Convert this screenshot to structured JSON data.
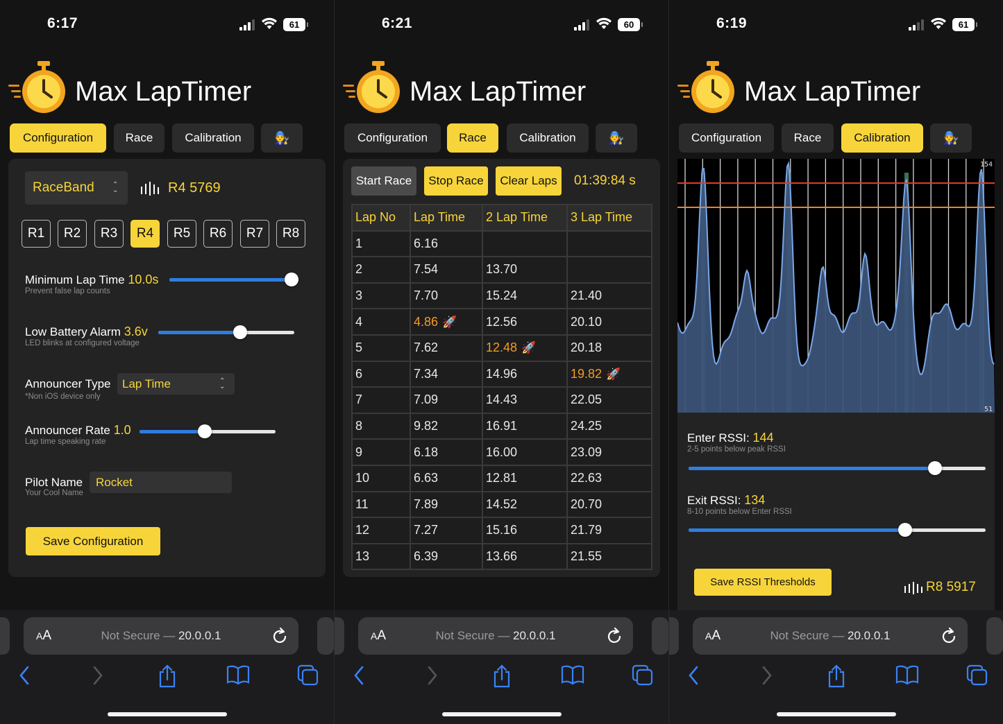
{
  "colors": {
    "accent": "#f7d53a",
    "best": "#f59a23",
    "slider": "#2f7de1",
    "enter_line": "#e23a2a",
    "exit_line": "#f0832a"
  },
  "phones": [
    {
      "time": "6:17",
      "battery": "61",
      "app_title": "Max LapTimer",
      "tabs": [
        "Configuration",
        "Race",
        "Calibration",
        "🧑‍🔧"
      ],
      "active_tab": 0,
      "url_aa": "AA",
      "url_text": "Not Secure — ",
      "url_host": "20.0.0.1"
    },
    {
      "time": "6:21",
      "battery": "60",
      "app_title": "Max LapTimer",
      "tabs": [
        "Configuration",
        "Race",
        "Calibration",
        "🧑‍🔧"
      ],
      "active_tab": 1,
      "url_aa": "AA",
      "url_text": "Not Secure — ",
      "url_host": "20.0.0.1"
    },
    {
      "time": "6:19",
      "battery": "61",
      "app_title": "Max LapTimer",
      "tabs": [
        "Configuration",
        "Race",
        "Calibration",
        "🧑‍🔧"
      ],
      "active_tab": 2,
      "url_aa": "AA",
      "url_text": "Not Secure — ",
      "url_host": "20.0.0.1"
    }
  ],
  "config": {
    "band_select": "RaceBand",
    "channel_readout": "R4 5769",
    "channels": [
      "R1",
      "R2",
      "R3",
      "R4",
      "R5",
      "R6",
      "R7",
      "R8"
    ],
    "active_channel": "R4",
    "min_lap": {
      "label": "Minimum Lap Time",
      "value": "10.0s",
      "hint": "Prevent false lap counts",
      "level": 1.0
    },
    "low_batt": {
      "label": "Low Battery Alarm",
      "value": "3.6v",
      "hint": "LED blinks at configured voltage",
      "level": 0.6
    },
    "announcer_type": {
      "label": "Announcer Type",
      "value": "Lap Time",
      "hint": "*Non iOS device only"
    },
    "announcer_rate": {
      "label": "Announcer Rate",
      "value": "1.0",
      "hint": "Lap time speaking rate",
      "level": 0.48
    },
    "pilot_name": {
      "label": "Pilot Name",
      "value": "Rocket",
      "hint": "Your Cool Name"
    },
    "save_button": "Save Configuration"
  },
  "race": {
    "start_button": "Start Race",
    "stop_button": "Stop Race",
    "clear_button": "Clear Laps",
    "timer": "01:39:84 s",
    "columns": [
      "Lap No",
      "Lap Time",
      "2 Lap Time",
      "3 Lap Time"
    ],
    "rows": [
      [
        "1",
        "6.16",
        "",
        ""
      ],
      [
        "2",
        "7.54",
        "13.70",
        ""
      ],
      [
        "3",
        "7.70",
        "15.24",
        "21.40"
      ],
      [
        "4",
        "4.86",
        "12.56",
        "20.10"
      ],
      [
        "5",
        "7.62",
        "12.48",
        "20.18"
      ],
      [
        "6",
        "7.34",
        "14.96",
        "19.82"
      ],
      [
        "7",
        "7.09",
        "14.43",
        "22.05"
      ],
      [
        "8",
        "9.82",
        "16.91",
        "24.25"
      ],
      [
        "9",
        "6.18",
        "16.00",
        "23.09"
      ],
      [
        "10",
        "6.63",
        "12.81",
        "22.63"
      ],
      [
        "11",
        "7.89",
        "14.52",
        "20.70"
      ],
      [
        "12",
        "7.27",
        "15.16",
        "21.79"
      ],
      [
        "13",
        "6.39",
        "13.66",
        "21.55"
      ]
    ],
    "best": [
      [
        3,
        1
      ],
      [
        4,
        2
      ],
      [
        5,
        3
      ]
    ],
    "best_marker": "🚀"
  },
  "calibration": {
    "graph_max": "154",
    "graph_min": "51",
    "enter_rssi": {
      "label": "Enter RSSI:",
      "value": "144",
      "hint": "2-5 points below peak RSSI",
      "level": 0.83
    },
    "exit_rssi": {
      "label": "Exit RSSI:",
      "value": "134",
      "hint": "8-10 points below Enter RSSI",
      "level": 0.73
    },
    "save_button": "Save RSSI Thresholds",
    "channel_readout": "R8 5917"
  }
}
